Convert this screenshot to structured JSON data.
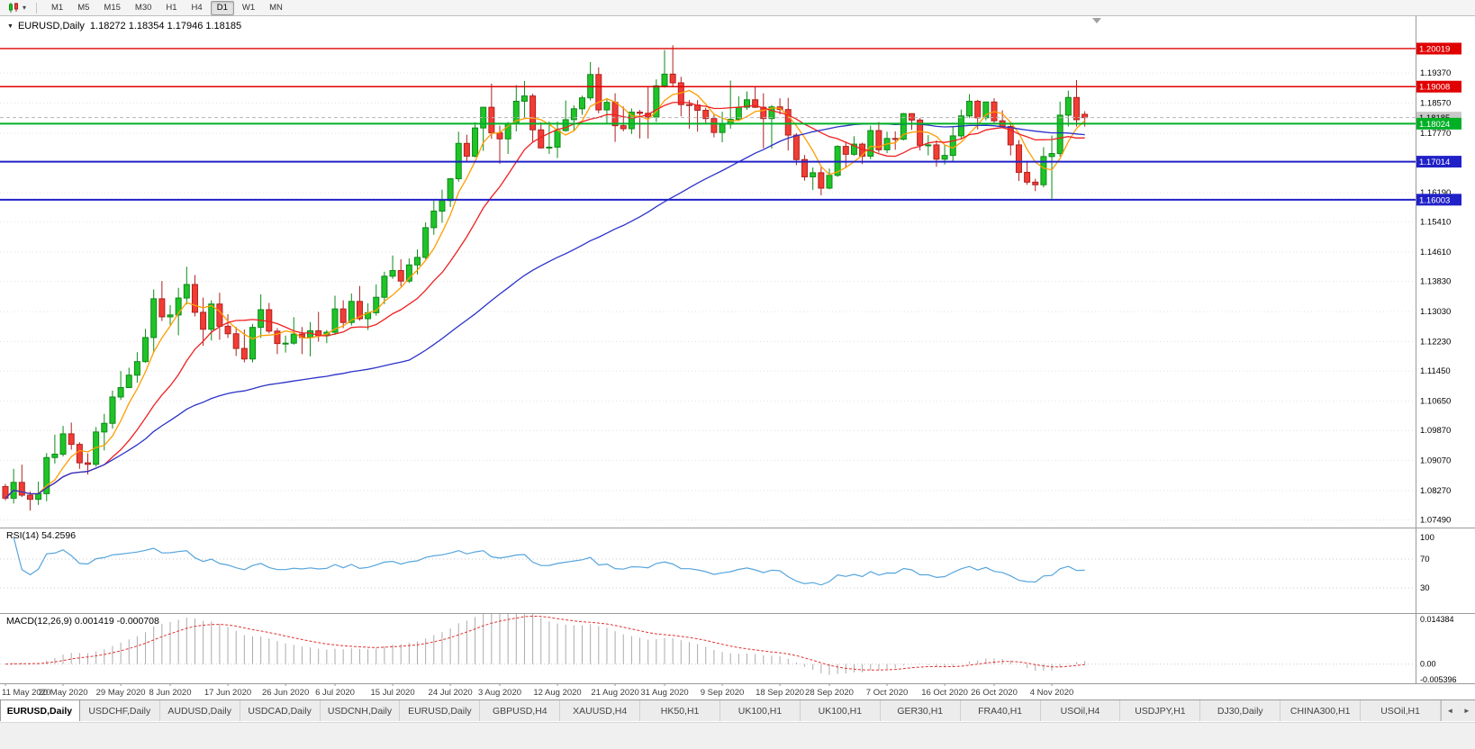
{
  "window": {
    "title": "EURUSD,Daily"
  },
  "toolbar": {
    "timeframes": [
      {
        "label": "M1",
        "active": false
      },
      {
        "label": "M5",
        "active": false
      },
      {
        "label": "M15",
        "active": false
      },
      {
        "label": "M30",
        "active": false
      },
      {
        "label": "H1",
        "active": false
      },
      {
        "label": "H4",
        "active": false
      },
      {
        "label": "D1",
        "active": true
      },
      {
        "label": "W1",
        "active": false
      },
      {
        "label": "MN",
        "active": false
      }
    ]
  },
  "chart": {
    "title": "EURUSD,Daily",
    "quote_line": "1.18272 1.18354 1.17946 1.18185",
    "rsi_label": "RSI(14) 54.2596",
    "macd_label": "MACD(12,26,9) 0.001419 -0.000708"
  },
  "chart_data": {
    "type": "candlestick",
    "symbol": "EURUSD",
    "period": "Daily",
    "quote": {
      "open": "1.18272",
      "high": "1.18354",
      "low": "1.17946",
      "close": "1.18185"
    },
    "colors": {
      "bull": "#1fc428",
      "bear": "#f23d34",
      "bull_edge": "#0d8a18",
      "bear_edge": "#b02020"
    },
    "y_axis": {
      "render_min": 1.0729,
      "render_max": 1.2088,
      "ticks": [
        "1.19370",
        "1.18570",
        "1.17770",
        "1.16190",
        "1.15410",
        "1.14610",
        "1.13830",
        "1.13030",
        "1.12230",
        "1.11450",
        "1.10650",
        "1.09870",
        "1.09070",
        "1.08270",
        "1.07490"
      ]
    },
    "hlines": [
      {
        "price": 1.20019,
        "label": "1.20019",
        "color": "#e00000",
        "width": 1.4
      },
      {
        "price": 1.19008,
        "label": "1.19008",
        "color": "#e00000",
        "width": 1.4
      },
      {
        "price": 1.18024,
        "label": "1.18024",
        "color": "#00b025",
        "width": 2
      },
      {
        "price": 1.17014,
        "label": "1.17014",
        "color": "#2121c8",
        "width": 2
      },
      {
        "price": 1.16003,
        "label": "1.16003",
        "color": "#2121c8",
        "width": 2
      }
    ],
    "current_price": {
      "value": 1.18185,
      "label": "1.18185",
      "badge_bg": "#c9c9c9",
      "badge_fg": "#000000"
    },
    "moving_averages": [
      {
        "name": "fast-ma",
        "period": 5,
        "color": "#ff9d00"
      },
      {
        "name": "mid-ma",
        "period": 13,
        "color": "#f02020"
      },
      {
        "name": "slow-ma",
        "period": 50,
        "color": "#2a32c8"
      }
    ],
    "rsi": {
      "period": 14,
      "color": "#56a5dd",
      "value_text": "54.2596",
      "levels": [
        {
          "value": 100,
          "label": "100",
          "line": false
        },
        {
          "value": 70,
          "label": "70",
          "line": true
        },
        {
          "value": 30,
          "label": "30",
          "line": true
        }
      ]
    },
    "macd": {
      "fast": 12,
      "slow": 26,
      "signal": 9,
      "histogram_color": "#ababab",
      "signal_color": "#e23232",
      "range": {
        "min": -0.005396,
        "max": 0.014384
      },
      "axis": [
        {
          "value": 0.014384,
          "label": "0.014384"
        },
        {
          "value": 0,
          "label": "0.00"
        },
        {
          "value": -0.005396,
          "label": "-0.005396"
        }
      ]
    },
    "x_labels": [
      {
        "i": 0,
        "t": "11 May 2020"
      },
      {
        "i": 7,
        "t": "20 May 2020"
      },
      {
        "i": 14,
        "t": "29 May 2020"
      },
      {
        "i": 20,
        "t": "8 Jun 2020"
      },
      {
        "i": 27,
        "t": "17 Jun 2020"
      },
      {
        "i": 34,
        "t": "26 Jun 2020"
      },
      {
        "i": 40,
        "t": "6 Jul 2020"
      },
      {
        "i": 47,
        "t": "15 Jul 2020"
      },
      {
        "i": 54,
        "t": "24 Jul 2020"
      },
      {
        "i": 60,
        "t": "3 Aug 2020"
      },
      {
        "i": 67,
        "t": "12 Aug 2020"
      },
      {
        "i": 74,
        "t": "21 Aug 2020"
      },
      {
        "i": 80,
        "t": "31 Aug 2020"
      },
      {
        "i": 87,
        "t": "9 Sep 2020"
      },
      {
        "i": 94,
        "t": "18 Sep 2020"
      },
      {
        "i": 100,
        "t": "28 Sep 2020"
      },
      {
        "i": 107,
        "t": "7 Oct 2020"
      },
      {
        "i": 114,
        "t": "16 Oct 2020"
      },
      {
        "i": 120,
        "t": "26 Oct 2020"
      },
      {
        "i": 127,
        "t": "4 Nov 2020"
      }
    ],
    "candles": [
      [
        1.0838,
        1.0845,
        1.0801,
        1.0807
      ],
      [
        1.0807,
        1.0885,
        1.0793,
        1.0849
      ],
      [
        1.0849,
        1.0896,
        1.081,
        1.0815
      ],
      [
        1.0815,
        1.0825,
        1.0774,
        1.0804
      ],
      [
        1.0804,
        1.0851,
        1.0789,
        1.0819
      ],
      [
        1.0819,
        1.0927,
        1.0799,
        1.0915
      ],
      [
        1.0915,
        1.0976,
        1.0899,
        1.0924
      ],
      [
        1.0924,
        1.0999,
        1.0918,
        1.0978
      ],
      [
        1.0978,
        1.1008,
        1.0936,
        1.095
      ],
      [
        1.095,
        1.0956,
        1.0885,
        1.0901
      ],
      [
        1.0901,
        1.0926,
        1.087,
        1.0897
      ],
      [
        1.0897,
        1.0996,
        1.0891,
        1.0983
      ],
      [
        1.0983,
        1.1031,
        1.0934,
        1.1006
      ],
      [
        1.1006,
        1.1093,
        1.0992,
        1.1076
      ],
      [
        1.1076,
        1.1145,
        1.1068,
        1.1101
      ],
      [
        1.1101,
        1.1154,
        1.1101,
        1.1134
      ],
      [
        1.1134,
        1.1195,
        1.1114,
        1.117
      ],
      [
        1.117,
        1.1257,
        1.1167,
        1.1234
      ],
      [
        1.1234,
        1.1362,
        1.1194,
        1.1337
      ],
      [
        1.1337,
        1.1384,
        1.1278,
        1.1289
      ],
      [
        1.1289,
        1.132,
        1.1268,
        1.1294
      ],
      [
        1.1294,
        1.1366,
        1.124,
        1.1339
      ],
      [
        1.1339,
        1.1422,
        1.1322,
        1.1375
      ],
      [
        1.1375,
        1.14,
        1.129,
        1.1301
      ],
      [
        1.1301,
        1.134,
        1.1212,
        1.1256
      ],
      [
        1.1256,
        1.1333,
        1.1226,
        1.1323
      ],
      [
        1.1323,
        1.1353,
        1.1228,
        1.1264
      ],
      [
        1.1264,
        1.1296,
        1.1233,
        1.1244
      ],
      [
        1.1244,
        1.1262,
        1.1185,
        1.1205
      ],
      [
        1.1205,
        1.1255,
        1.1168,
        1.1177
      ],
      [
        1.1177,
        1.127,
        1.1168,
        1.1261
      ],
      [
        1.1261,
        1.1349,
        1.1233,
        1.1308
      ],
      [
        1.1308,
        1.1326,
        1.1245,
        1.1251
      ],
      [
        1.1251,
        1.1259,
        1.119,
        1.1218
      ],
      [
        1.1218,
        1.1239,
        1.1194,
        1.1219
      ],
      [
        1.1219,
        1.1288,
        1.1215,
        1.1243
      ],
      [
        1.1243,
        1.1262,
        1.119,
        1.1234
      ],
      [
        1.1234,
        1.1275,
        1.1184,
        1.1252
      ],
      [
        1.1252,
        1.1302,
        1.1223,
        1.1239
      ],
      [
        1.1239,
        1.1254,
        1.1219,
        1.1248
      ],
      [
        1.1248,
        1.1345,
        1.1241,
        1.131
      ],
      [
        1.131,
        1.1333,
        1.1259,
        1.1274
      ],
      [
        1.1274,
        1.1351,
        1.1266,
        1.133
      ],
      [
        1.133,
        1.1371,
        1.1279,
        1.1284
      ],
      [
        1.1284,
        1.1325,
        1.1254,
        1.13
      ],
      [
        1.13,
        1.1375,
        1.1292,
        1.1341
      ],
      [
        1.1341,
        1.1409,
        1.1323,
        1.1397
      ],
      [
        1.1397,
        1.1452,
        1.139,
        1.1412
      ],
      [
        1.1412,
        1.1442,
        1.137,
        1.1384
      ],
      [
        1.1384,
        1.1444,
        1.1379,
        1.1427
      ],
      [
        1.1427,
        1.1468,
        1.1402,
        1.1447
      ],
      [
        1.1447,
        1.154,
        1.1442,
        1.1526
      ],
      [
        1.1526,
        1.1601,
        1.1507,
        1.157
      ],
      [
        1.157,
        1.1627,
        1.1539,
        1.1598
      ],
      [
        1.1598,
        1.1658,
        1.1581,
        1.1656
      ],
      [
        1.1656,
        1.1781,
        1.1648,
        1.175
      ],
      [
        1.175,
        1.1773,
        1.17,
        1.1716
      ],
      [
        1.1716,
        1.1806,
        1.1713,
        1.1791
      ],
      [
        1.1791,
        1.1847,
        1.173,
        1.1846
      ],
      [
        1.1846,
        1.1909,
        1.1762,
        1.1778
      ],
      [
        1.1778,
        1.1797,
        1.1696,
        1.1762
      ],
      [
        1.1762,
        1.1807,
        1.1722,
        1.1802
      ],
      [
        1.1802,
        1.1905,
        1.1782,
        1.1862
      ],
      [
        1.1862,
        1.1916,
        1.1818,
        1.1876
      ],
      [
        1.1876,
        1.1882,
        1.1754,
        1.1786
      ],
      [
        1.1786,
        1.1806,
        1.1736,
        1.1738
      ],
      [
        1.1738,
        1.1808,
        1.1722,
        1.174
      ],
      [
        1.174,
        1.1808,
        1.1711,
        1.1784
      ],
      [
        1.1784,
        1.1864,
        1.1781,
        1.1813
      ],
      [
        1.1813,
        1.1851,
        1.1782,
        1.1842
      ],
      [
        1.1842,
        1.1877,
        1.1826,
        1.1871
      ],
      [
        1.1871,
        1.1966,
        1.1864,
        1.1933
      ],
      [
        1.1933,
        1.1952,
        1.183,
        1.1839
      ],
      [
        1.1839,
        1.1869,
        1.1801,
        1.1859
      ],
      [
        1.1859,
        1.1883,
        1.1754,
        1.1797
      ],
      [
        1.1797,
        1.1848,
        1.1782,
        1.1789
      ],
      [
        1.1789,
        1.1843,
        1.1775,
        1.1833
      ],
      [
        1.1833,
        1.1839,
        1.1763,
        1.183
      ],
      [
        1.183,
        1.1902,
        1.1763,
        1.182
      ],
      [
        1.182,
        1.192,
        1.1807,
        1.1903
      ],
      [
        1.1903,
        1.1998,
        1.1898,
        1.1934
      ],
      [
        1.1934,
        1.2011,
        1.1899,
        1.1911
      ],
      [
        1.1911,
        1.1927,
        1.1822,
        1.1853
      ],
      [
        1.1853,
        1.1865,
        1.1789,
        1.1852
      ],
      [
        1.1852,
        1.1865,
        1.1781,
        1.1838
      ],
      [
        1.1838,
        1.1845,
        1.1805,
        1.1816
      ],
      [
        1.1816,
        1.1827,
        1.1766,
        1.1779
      ],
      [
        1.1779,
        1.1834,
        1.1753,
        1.1801
      ],
      [
        1.1801,
        1.1917,
        1.1789,
        1.1814
      ],
      [
        1.1814,
        1.1875,
        1.1809,
        1.1846
      ],
      [
        1.1846,
        1.1888,
        1.1839,
        1.1866
      ],
      [
        1.1866,
        1.1899,
        1.1844,
        1.1846
      ],
      [
        1.1846,
        1.1883,
        1.1737,
        1.1816
      ],
      [
        1.1816,
        1.1852,
        1.1736,
        1.1847
      ],
      [
        1.1847,
        1.187,
        1.1827,
        1.184
      ],
      [
        1.184,
        1.1871,
        1.1731,
        1.1772
      ],
      [
        1.1772,
        1.1777,
        1.1692,
        1.1707
      ],
      [
        1.1707,
        1.1719,
        1.1651,
        1.1661
      ],
      [
        1.1661,
        1.1686,
        1.1626,
        1.1672
      ],
      [
        1.1672,
        1.1687,
        1.1612,
        1.1631
      ],
      [
        1.1631,
        1.1683,
        1.1628,
        1.1665
      ],
      [
        1.1665,
        1.1745,
        1.1661,
        1.1742
      ],
      [
        1.1742,
        1.1755,
        1.1684,
        1.1721
      ],
      [
        1.1721,
        1.1769,
        1.1717,
        1.1748
      ],
      [
        1.1748,
        1.1752,
        1.1695,
        1.1716
      ],
      [
        1.1716,
        1.1797,
        1.1708,
        1.1784
      ],
      [
        1.1784,
        1.1807,
        1.1725,
        1.1733
      ],
      [
        1.1733,
        1.1781,
        1.1724,
        1.1763
      ],
      [
        1.1763,
        1.1782,
        1.1733,
        1.1761
      ],
      [
        1.1761,
        1.1831,
        1.1758,
        1.1829
      ],
      [
        1.1829,
        1.183,
        1.1786,
        1.1812
      ],
      [
        1.1812,
        1.1817,
        1.1731,
        1.1745
      ],
      [
        1.1745,
        1.1772,
        1.1718,
        1.1746
      ],
      [
        1.1746,
        1.1758,
        1.1688,
        1.1708
      ],
      [
        1.1708,
        1.1747,
        1.1694,
        1.1718
      ],
      [
        1.1718,
        1.1794,
        1.1703,
        1.177
      ],
      [
        1.177,
        1.184,
        1.176,
        1.1823
      ],
      [
        1.1823,
        1.1881,
        1.1817,
        1.1862
      ],
      [
        1.1862,
        1.1866,
        1.1787,
        1.1818
      ],
      [
        1.1818,
        1.186,
        1.1811,
        1.186
      ],
      [
        1.186,
        1.187,
        1.1803,
        1.181
      ],
      [
        1.181,
        1.1838,
        1.1793,
        1.1795
      ],
      [
        1.1795,
        1.18,
        1.1718,
        1.1746
      ],
      [
        1.1746,
        1.1759,
        1.165,
        1.1673
      ],
      [
        1.1673,
        1.1704,
        1.164,
        1.1647
      ],
      [
        1.1647,
        1.1656,
        1.1623,
        1.164
      ],
      [
        1.164,
        1.174,
        1.1633,
        1.1715
      ],
      [
        1.1715,
        1.1771,
        1.1603,
        1.1723
      ],
      [
        1.1723,
        1.1861,
        1.1715,
        1.1825
      ],
      [
        1.1825,
        1.189,
        1.1795,
        1.1872
      ],
      [
        1.1872,
        1.1918,
        1.1795,
        1.1813
      ],
      [
        1.18272,
        1.18354,
        1.17946,
        1.18185
      ]
    ]
  },
  "tabs": {
    "items": [
      {
        "label": "EURUSD,Daily",
        "active": true
      },
      {
        "label": "USDCHF,Daily",
        "active": false
      },
      {
        "label": "AUDUSD,Daily",
        "active": false
      },
      {
        "label": "USDCAD,Daily",
        "active": false
      },
      {
        "label": "USDCNH,Daily",
        "active": false
      },
      {
        "label": "EURUSD,Daily",
        "active": false
      },
      {
        "label": "GBPUSD,H4",
        "active": false
      },
      {
        "label": "XAUUSD,H4",
        "active": false
      },
      {
        "label": "HK50,H1",
        "active": false
      },
      {
        "label": "UK100,H1",
        "active": false
      },
      {
        "label": "UK100,H1",
        "active": false
      },
      {
        "label": "GER30,H1",
        "active": false
      },
      {
        "label": "FRA40,H1",
        "active": false
      },
      {
        "label": "USOil,H4",
        "active": false
      },
      {
        "label": "USDJPY,H1",
        "active": false
      },
      {
        "label": "DJ30,Daily",
        "active": false
      },
      {
        "label": "CHINA300,H1",
        "active": false
      },
      {
        "label": "USOil,H1",
        "active": false
      }
    ],
    "scroll_left_icon": "◄",
    "scroll_right_icon": "►"
  }
}
